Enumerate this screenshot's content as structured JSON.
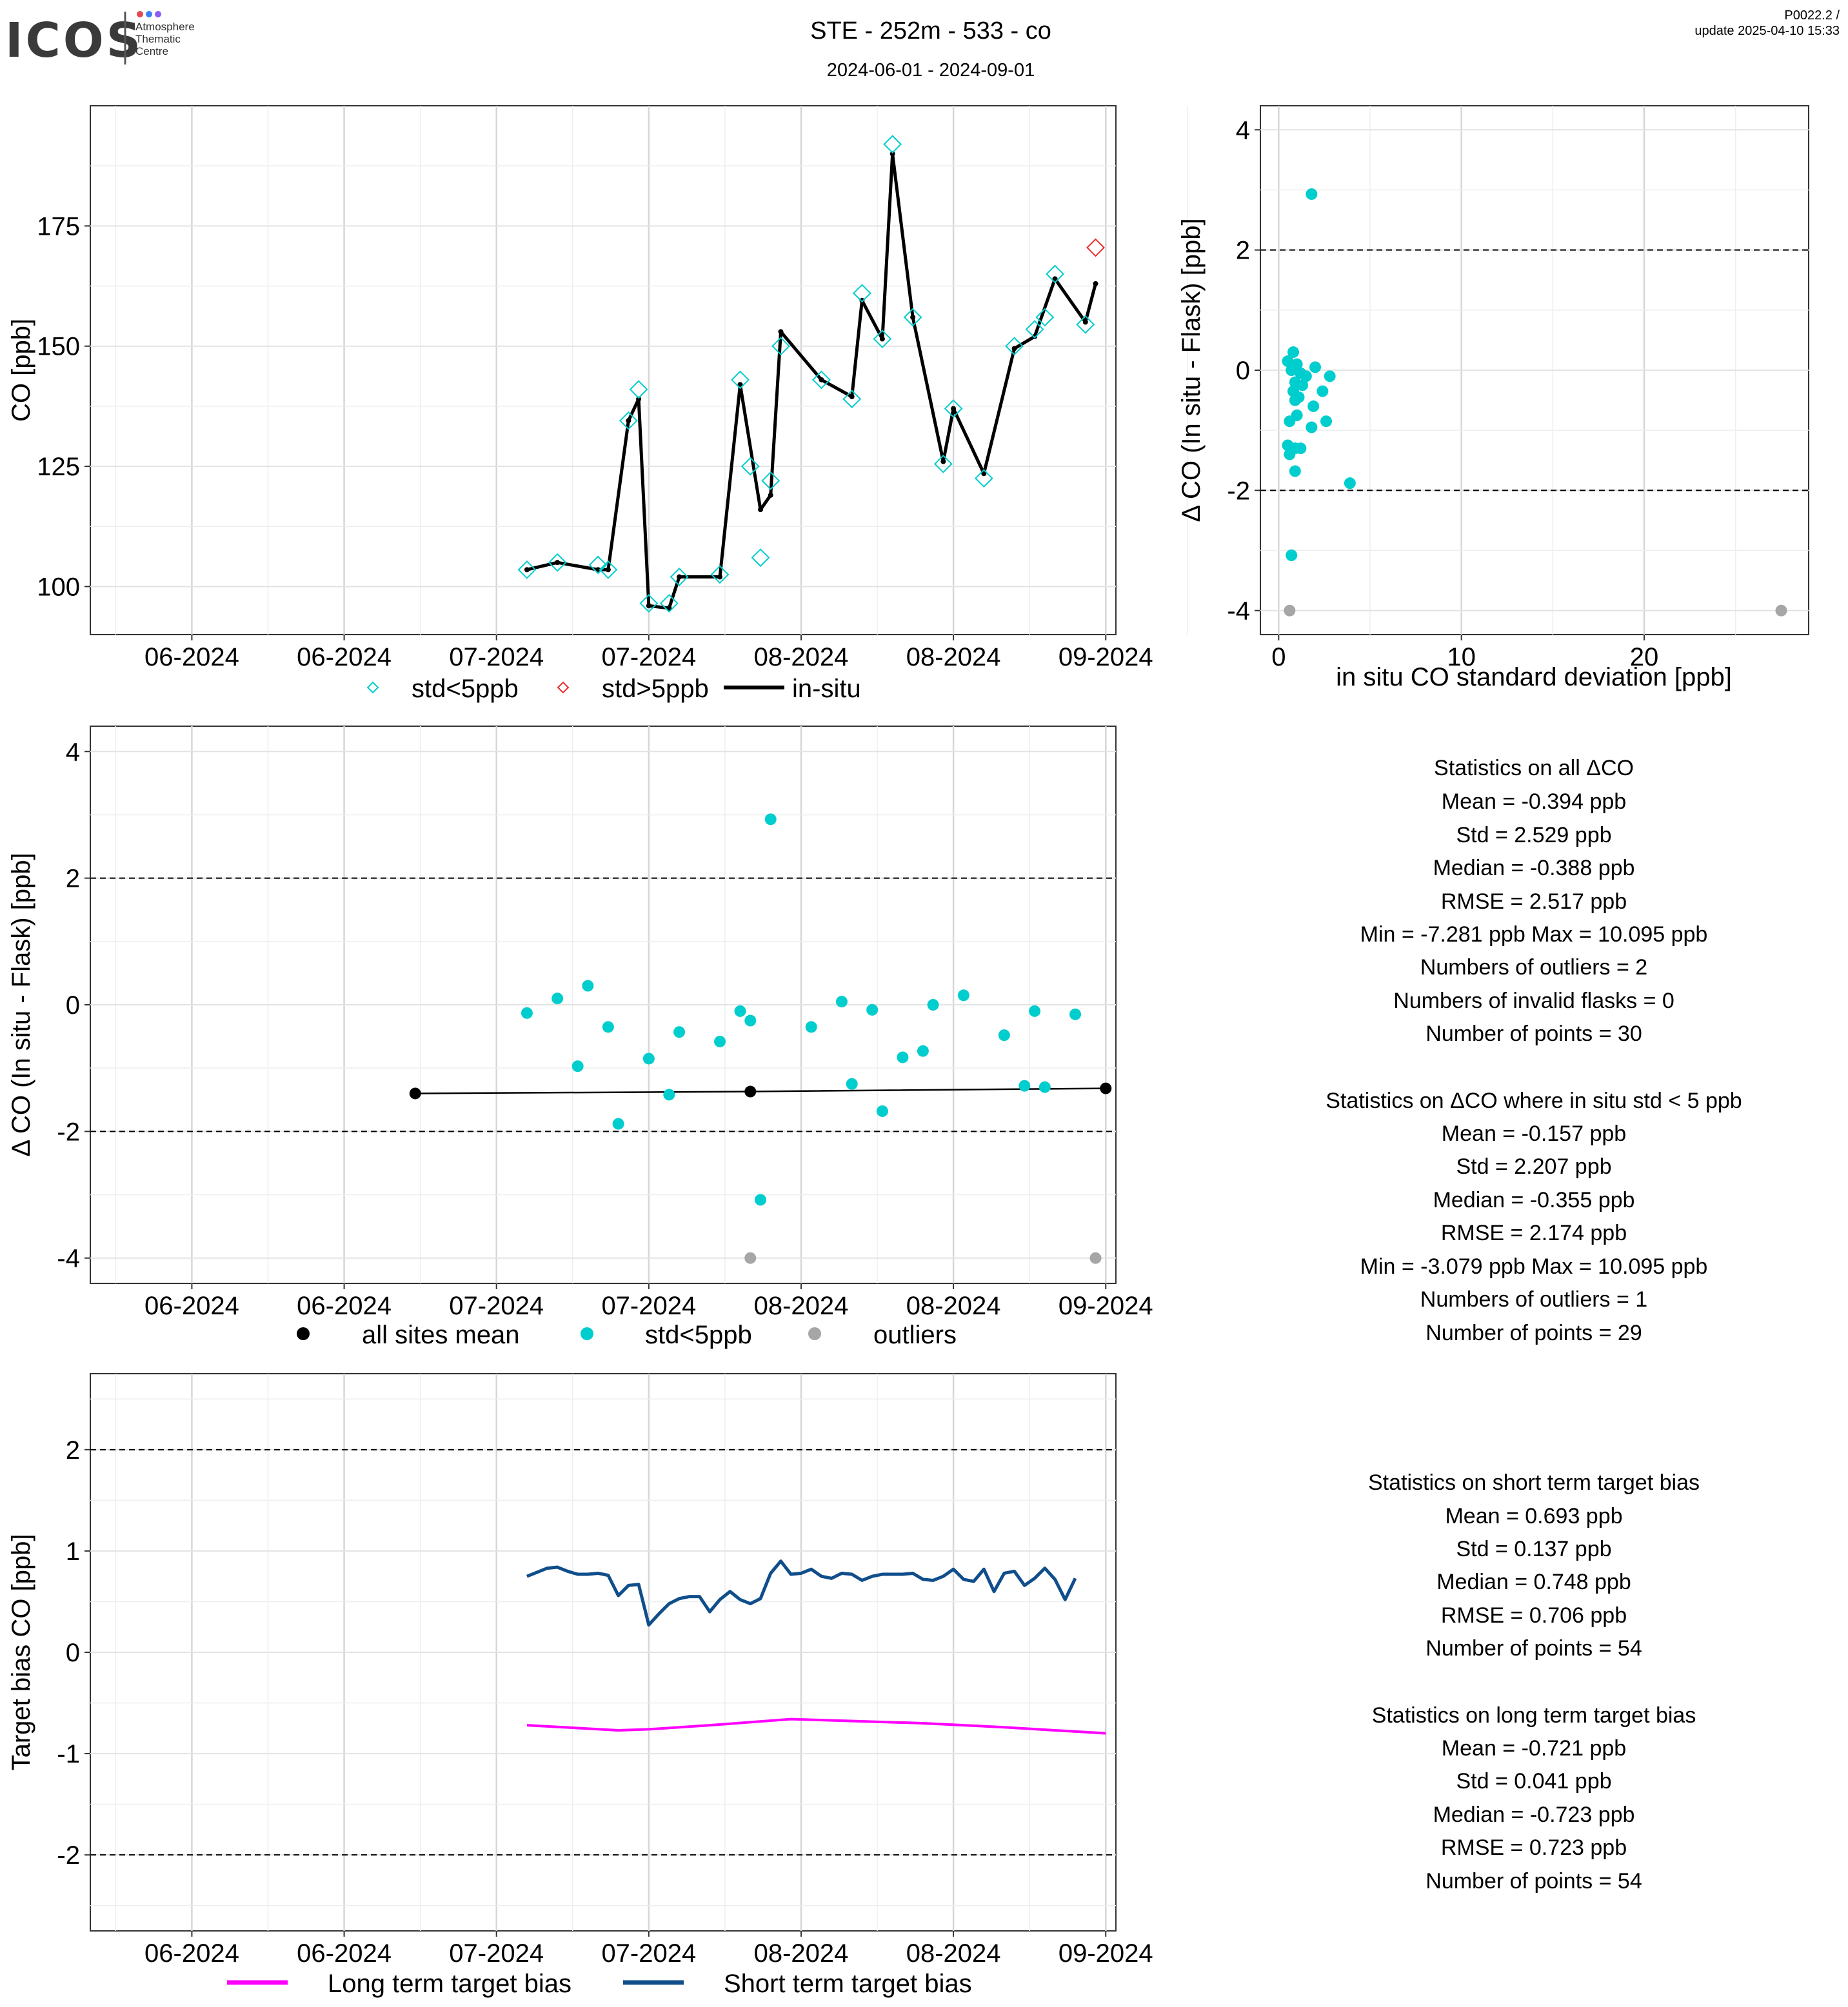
{
  "header": {
    "logo_text": "ICOS",
    "logo_sub": [
      "Atmosphere",
      "Thematic",
      "Centre"
    ],
    "logo_dot_colors": [
      "#e5484d",
      "#3b82f6",
      "#8b5cf6"
    ],
    "title": "STE - 252m - 533 - co",
    "subtitle": "2024-06-01 - 2024-09-01",
    "corner_line1": "P0022.2 /",
    "corner_line2": "update  2025-04-10 15:33"
  },
  "colors": {
    "cyan": "#00CDCD",
    "red": "#EE2C2C",
    "grey": "#A6A6A6",
    "black": "#000000",
    "magenta": "#FF00FF",
    "navy": "#104E8B"
  },
  "stats": {
    "all": {
      "title": "Statistics on all ΔCO",
      "lines": [
        "Mean =  -0.394 ppb",
        "Std =  2.529 ppb",
        "Median =  -0.388 ppb",
        "RMSE =  2.517 ppb",
        "Min =  -7.281 ppb Max =  10.095 ppb",
        "Numbers of outliers =  2",
        "Numbers of invalid flasks =  0",
        "Number of points =  30"
      ]
    },
    "std5": {
      "title": "Statistics on ΔCO where in situ std < 5 ppb",
      "lines": [
        "Mean =  -0.157 ppb",
        "Std =  2.207 ppb",
        "Median =  -0.355 ppb",
        "RMSE =  2.174 ppb",
        "Min =  -3.079 ppb Max =  10.095 ppb",
        "Numbers of outliers =  1",
        "Number of points =  29"
      ]
    },
    "short": {
      "title": "Statistics on short term target bias",
      "lines": [
        "Mean =  0.693 ppb",
        "Std =  0.137 ppb",
        "Median =  0.748 ppb",
        "RMSE =  0.706 ppb",
        "Number of points =  54"
      ]
    },
    "long": {
      "title": "Statistics on long term target bias",
      "lines": [
        "Mean =  -0.721 ppb",
        "Std =  0.041 ppb",
        "Median =  -0.723 ppb",
        "RMSE =  0.723 ppb",
        "Number of points =  54"
      ]
    }
  },
  "chart_data": [
    {
      "id": "co",
      "type": "line",
      "ylabel": "CO [ppb]",
      "x_ticks": [
        {
          "label": "06-2024",
          "x": "2024-06-01"
        },
        {
          "label": "06-2024",
          "x": "2024-06-16"
        },
        {
          "label": "07-2024",
          "x": "2024-07-01"
        },
        {
          "label": "07-2024",
          "x": "2024-07-16"
        },
        {
          "label": "08-2024",
          "x": "2024-07-31"
        },
        {
          "label": "08-2024",
          "x": "2024-08-15"
        },
        {
          "label": "09-2024",
          "x": "2024-08-30"
        }
      ],
      "xlim": [
        "2024-05-22",
        "2024-08-31"
      ],
      "ylim": [
        90,
        200
      ],
      "y_ticks": [
        100,
        125,
        150,
        175
      ],
      "legend": [
        "std<5ppb",
        "std>5ppb",
        "in-situ"
      ],
      "series": [
        {
          "name": "std<5ppb",
          "points": [
            [
              "2024-07-04",
              103.5
            ],
            [
              "2024-07-07",
              105
            ],
            [
              "2024-07-11",
              104.5
            ],
            [
              "2024-07-12",
              103.5
            ],
            [
              "2024-07-14",
              134.5
            ],
            [
              "2024-07-15",
              141
            ],
            [
              "2024-07-16",
              96.5
            ],
            [
              "2024-07-18",
              96.5
            ],
            [
              "2024-07-19",
              102
            ],
            [
              "2024-07-23",
              102.5
            ],
            [
              "2024-07-25",
              143
            ],
            [
              "2024-07-26",
              125
            ],
            [
              "2024-07-27",
              106
            ],
            [
              "2024-07-28",
              122
            ],
            [
              "2024-07-29",
              150
            ],
            [
              "2024-08-02",
              143
            ],
            [
              "2024-08-05",
              139
            ],
            [
              "2024-08-06",
              161
            ],
            [
              "2024-08-08",
              151.5
            ],
            [
              "2024-08-09",
              192
            ],
            [
              "2024-08-11",
              156
            ],
            [
              "2024-08-14",
              125.5
            ],
            [
              "2024-08-15",
              137
            ],
            [
              "2024-08-18",
              122.5
            ],
            [
              "2024-08-21",
              150
            ],
            [
              "2024-08-23",
              153.5
            ],
            [
              "2024-08-24",
              156
            ],
            [
              "2024-08-25",
              165
            ],
            [
              "2024-08-28",
              154.5
            ]
          ]
        },
        {
          "name": "std>5ppb",
          "points": [
            [
              "2024-08-29",
              170.5
            ]
          ]
        },
        {
          "name": "in-situ",
          "points": [
            [
              "2024-07-04",
              103.5
            ],
            [
              "2024-07-07",
              105
            ],
            [
              "2024-07-11",
              103.5
            ],
            [
              "2024-07-12",
              103.5
            ],
            [
              "2024-07-14",
              134.5
            ],
            [
              "2024-07-15",
              139
            ],
            [
              "2024-07-16",
              96
            ],
            [
              "2024-07-18",
              95.5
            ],
            [
              "2024-07-19",
              102
            ],
            [
              "2024-07-23",
              102
            ],
            [
              "2024-07-25",
              142
            ],
            [
              "2024-07-27",
              116
            ],
            [
              "2024-07-28",
              119
            ],
            [
              "2024-07-29",
              153
            ],
            [
              "2024-08-02",
              143
            ],
            [
              "2024-08-05",
              139.5
            ],
            [
              "2024-08-06",
              159.5
            ],
            [
              "2024-08-08",
              151.5
            ],
            [
              "2024-08-09",
              190
            ],
            [
              "2024-08-11",
              156
            ],
            [
              "2024-08-14",
              126
            ],
            [
              "2024-08-15",
              137
            ],
            [
              "2024-08-18",
              123.5
            ],
            [
              "2024-08-21",
              149.5
            ],
            [
              "2024-08-23",
              152
            ],
            [
              "2024-08-25",
              164
            ],
            [
              "2024-08-28",
              155
            ],
            [
              "2024-08-29",
              163
            ]
          ]
        }
      ]
    },
    {
      "id": "scatter",
      "type": "scatter",
      "xlabel": "in situ CO standard deviation [ppb]",
      "ylabel": "Δ CO (In situ - Flask) [ppb]",
      "xlim": [
        -1,
        29
      ],
      "ylim": [
        -4.4,
        4.4
      ],
      "x_ticks": [
        0,
        10,
        20
      ],
      "y_ticks": [
        -4,
        -2,
        0,
        2,
        4
      ],
      "hlines": [
        2,
        -2
      ],
      "series": [
        {
          "name": "std<5ppb",
          "points": [
            [
              1.8,
              2.93
            ],
            [
              0.5,
              0.15
            ],
            [
              0.8,
              0.3
            ],
            [
              1.0,
              0.1
            ],
            [
              0.7,
              0.0
            ],
            [
              1.2,
              -0.05
            ],
            [
              1.5,
              -0.1
            ],
            [
              0.9,
              -0.2
            ],
            [
              1.3,
              -0.25
            ],
            [
              0.8,
              -0.35
            ],
            [
              2.0,
              0.05
            ],
            [
              2.8,
              -0.1
            ],
            [
              2.4,
              -0.35
            ],
            [
              1.1,
              -0.45
            ],
            [
              0.9,
              -0.5
            ],
            [
              1.9,
              -0.6
            ],
            [
              1.0,
              -0.75
            ],
            [
              0.6,
              -0.85
            ],
            [
              2.6,
              -0.85
            ],
            [
              1.8,
              -0.95
            ],
            [
              0.5,
              -1.25
            ],
            [
              0.9,
              -1.3
            ],
            [
              1.2,
              -1.3
            ],
            [
              0.6,
              -1.4
            ],
            [
              0.9,
              -1.68
            ],
            [
              3.9,
              -1.88
            ],
            [
              0.7,
              -3.08
            ]
          ]
        },
        {
          "name": "outliers",
          "points": [
            [
              0.6,
              -4.0
            ],
            [
              27.5,
              -4.0
            ]
          ]
        }
      ]
    },
    {
      "id": "delta",
      "type": "scatter",
      "ylabel": "Δ CO (In situ - Flask) [ppb]",
      "x_ticks": [
        {
          "label": "06-2024",
          "x": "2024-06-01"
        },
        {
          "label": "06-2024",
          "x": "2024-06-16"
        },
        {
          "label": "07-2024",
          "x": "2024-07-01"
        },
        {
          "label": "07-2024",
          "x": "2024-07-16"
        },
        {
          "label": "08-2024",
          "x": "2024-07-31"
        },
        {
          "label": "08-2024",
          "x": "2024-08-15"
        },
        {
          "label": "09-2024",
          "x": "2024-08-30"
        }
      ],
      "xlim": [
        "2024-05-22",
        "2024-08-31"
      ],
      "ylim": [
        -4.4,
        4.4
      ],
      "y_ticks": [
        -4,
        -2,
        0,
        2,
        4
      ],
      "hlines": [
        2,
        -2
      ],
      "legend": [
        "all sites mean",
        "std<5ppb",
        "outliers"
      ],
      "series": [
        {
          "name": "all sites mean",
          "points": [
            [
              "2024-06-23",
              -1.4
            ],
            [
              "2024-07-26",
              -1.37
            ],
            [
              "2024-08-30",
              -1.32
            ]
          ]
        },
        {
          "name": "std<5ppb",
          "points": [
            [
              "2024-07-04",
              -0.13
            ],
            [
              "2024-07-07",
              0.1
            ],
            [
              "2024-07-09",
              -0.97
            ],
            [
              "2024-07-10",
              0.3
            ],
            [
              "2024-07-12",
              -0.35
            ],
            [
              "2024-07-13",
              -1.88
            ],
            [
              "2024-07-16",
              -0.85
            ],
            [
              "2024-07-18",
              -1.42
            ],
            [
              "2024-07-19",
              -0.43
            ],
            [
              "2024-07-23",
              -0.58
            ],
            [
              "2024-07-25",
              -0.1
            ],
            [
              "2024-07-26",
              -0.25
            ],
            [
              "2024-07-27",
              -3.08
            ],
            [
              "2024-07-28",
              2.93
            ],
            [
              "2024-08-01",
              -0.35
            ],
            [
              "2024-08-04",
              0.05
            ],
            [
              "2024-08-05",
              -1.25
            ],
            [
              "2024-08-07",
              -0.08
            ],
            [
              "2024-08-08",
              -1.68
            ],
            [
              "2024-08-10",
              -0.83
            ],
            [
              "2024-08-12",
              -0.73
            ],
            [
              "2024-08-13",
              0.0
            ],
            [
              "2024-08-16",
              0.15
            ],
            [
              "2024-08-20",
              -0.48
            ],
            [
              "2024-08-22",
              -1.28
            ],
            [
              "2024-08-23",
              -0.1
            ],
            [
              "2024-08-24",
              -1.3
            ],
            [
              "2024-08-27",
              -0.15
            ]
          ]
        },
        {
          "name": "outliers",
          "points": [
            [
              "2024-07-26",
              -4.0
            ],
            [
              "2024-08-29",
              -4.0
            ]
          ]
        }
      ]
    },
    {
      "id": "bias",
      "type": "line",
      "ylabel": "Target bias CO [ppb]",
      "x_ticks": [
        {
          "label": "06-2024",
          "x": "2024-06-01"
        },
        {
          "label": "06-2024",
          "x": "2024-06-16"
        },
        {
          "label": "07-2024",
          "x": "2024-07-01"
        },
        {
          "label": "07-2024",
          "x": "2024-07-16"
        },
        {
          "label": "08-2024",
          "x": "2024-07-31"
        },
        {
          "label": "08-2024",
          "x": "2024-08-15"
        },
        {
          "label": "09-2024",
          "x": "2024-08-30"
        }
      ],
      "xlim": [
        "2024-05-22",
        "2024-08-31"
      ],
      "ylim": [
        -2.75,
        2.75
      ],
      "y_ticks": [
        -2,
        -1,
        0,
        1,
        2
      ],
      "hlines": [
        2,
        -2
      ],
      "legend": [
        "Long term target bias",
        "Short term target bias"
      ],
      "series": [
        {
          "name": "Long term target bias",
          "points": [
            [
              "2024-07-04",
              -0.72
            ],
            [
              "2024-07-13",
              -0.77
            ],
            [
              "2024-07-16",
              -0.76
            ],
            [
              "2024-07-22",
              -0.72
            ],
            [
              "2024-07-30",
              -0.66
            ],
            [
              "2024-08-12",
              -0.7
            ],
            [
              "2024-08-20",
              -0.74
            ],
            [
              "2024-08-30",
              -0.8
            ]
          ]
        },
        {
          "name": "Short term target bias",
          "points": [
            [
              "2024-07-04",
              0.75
            ],
            [
              "2024-07-05",
              0.79
            ],
            [
              "2024-07-06",
              0.83
            ],
            [
              "2024-07-07",
              0.84
            ],
            [
              "2024-07-08",
              0.8
            ],
            [
              "2024-07-09",
              0.77
            ],
            [
              "2024-07-10",
              0.77
            ],
            [
              "2024-07-11",
              0.78
            ],
            [
              "2024-07-12",
              0.76
            ],
            [
              "2024-07-13",
              0.56
            ],
            [
              "2024-07-14",
              0.66
            ],
            [
              "2024-07-15",
              0.67
            ],
            [
              "2024-07-16",
              0.27
            ],
            [
              "2024-07-17",
              0.38
            ],
            [
              "2024-07-18",
              0.48
            ],
            [
              "2024-07-19",
              0.53
            ],
            [
              "2024-07-20",
              0.55
            ],
            [
              "2024-07-21",
              0.55
            ],
            [
              "2024-07-22",
              0.4
            ],
            [
              "2024-07-23",
              0.52
            ],
            [
              "2024-07-24",
              0.6
            ],
            [
              "2024-07-25",
              0.52
            ],
            [
              "2024-07-26",
              0.48
            ],
            [
              "2024-07-27",
              0.53
            ],
            [
              "2024-07-28",
              0.78
            ],
            [
              "2024-07-29",
              0.9
            ],
            [
              "2024-07-30",
              0.77
            ],
            [
              "2024-07-31",
              0.78
            ],
            [
              "2024-08-01",
              0.82
            ],
            [
              "2024-08-02",
              0.75
            ],
            [
              "2024-08-03",
              0.73
            ],
            [
              "2024-08-04",
              0.78
            ],
            [
              "2024-08-05",
              0.77
            ],
            [
              "2024-08-06",
              0.71
            ],
            [
              "2024-08-07",
              0.75
            ],
            [
              "2024-08-08",
              0.77
            ],
            [
              "2024-08-09",
              0.77
            ],
            [
              "2024-08-10",
              0.77
            ],
            [
              "2024-08-11",
              0.78
            ],
            [
              "2024-08-12",
              0.72
            ],
            [
              "2024-08-13",
              0.71
            ],
            [
              "2024-08-14",
              0.75
            ],
            [
              "2024-08-15",
              0.82
            ],
            [
              "2024-08-16",
              0.72
            ],
            [
              "2024-08-17",
              0.7
            ],
            [
              "2024-08-18",
              0.82
            ],
            [
              "2024-08-19",
              0.6
            ],
            [
              "2024-08-20",
              0.78
            ],
            [
              "2024-08-21",
              0.8
            ],
            [
              "2024-08-22",
              0.66
            ],
            [
              "2024-08-23",
              0.73
            ],
            [
              "2024-08-24",
              0.83
            ],
            [
              "2024-08-25",
              0.72
            ],
            [
              "2024-08-26",
              0.52
            ],
            [
              "2024-08-27",
              0.73
            ]
          ]
        }
      ]
    }
  ]
}
